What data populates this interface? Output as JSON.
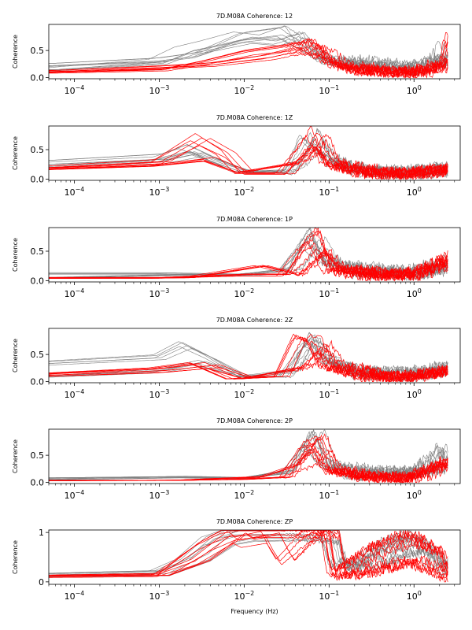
{
  "chart_data": [
    {
      "type": "line",
      "title": "7D.M08A Coherence: 12",
      "ylabel": "Coherence",
      "xlabel": "",
      "xscale": "log",
      "xlim": [
        5e-05,
        3.5
      ],
      "ylim": [
        -0.02,
        0.98
      ],
      "yticks": [
        0.0,
        0.5
      ],
      "ytick_labels": [
        "0.0",
        "0.5"
      ],
      "xticks": [
        0.0001,
        0.001,
        0.01,
        0.1,
        1
      ],
      "xtick_labels": [
        "10",
        "10",
        "10",
        "10",
        "10"
      ],
      "xtick_exponents": [
        "−4",
        "−3",
        "−2",
        "−1",
        "0"
      ],
      "series_colors": {
        "gray": "#808080",
        "red": "#ff0000"
      },
      "series": [
        {
          "color": "gray",
          "x": [
            5e-05,
            0.001,
            0.002,
            0.004,
            0.01,
            0.02,
            0.04,
            0.06,
            0.1,
            0.3,
            1,
            2,
            2.5
          ],
          "y": [
            0.15,
            0.3,
            0.5,
            0.6,
            0.75,
            0.7,
            0.85,
            0.5,
            0.3,
            0.2,
            0.15,
            0.3,
            0.5
          ]
        },
        {
          "color": "gray",
          "x": [
            5e-05,
            0.001,
            0.003,
            0.01,
            0.03,
            0.06,
            0.1,
            0.3,
            1,
            2.5
          ],
          "y": [
            0.25,
            0.35,
            0.45,
            0.8,
            0.9,
            0.6,
            0.35,
            0.3,
            0.2,
            0.4
          ]
        },
        {
          "color": "red",
          "x": [
            5e-05,
            0.001,
            0.003,
            0.01,
            0.03,
            0.06,
            0.1,
            0.2,
            1,
            2,
            2.5
          ],
          "y": [
            0.1,
            0.15,
            0.3,
            0.5,
            0.6,
            0.7,
            0.3,
            0.15,
            0.1,
            0.2,
            0.8
          ]
        },
        {
          "color": "red",
          "x": [
            5e-05,
            0.001,
            0.004,
            0.02,
            0.05,
            0.08,
            0.15,
            0.5,
            1,
            2.5
          ],
          "y": [
            0.12,
            0.2,
            0.25,
            0.4,
            0.55,
            0.45,
            0.2,
            0.12,
            0.1,
            0.3
          ]
        }
      ]
    },
    {
      "type": "line",
      "title": "7D.M08A Coherence: 1Z",
      "ylabel": "Coherence",
      "xlabel": "",
      "xscale": "log",
      "xlim": [
        5e-05,
        3.5
      ],
      "ylim": [
        -0.02,
        0.9
      ],
      "yticks": [
        0.0,
        0.5
      ],
      "ytick_labels": [
        "0.0",
        "0.5"
      ],
      "xticks": [
        0.0001,
        0.001,
        0.01,
        0.1,
        1
      ],
      "xtick_labels": [
        "10",
        "10",
        "10",
        "10",
        "10"
      ],
      "xtick_exponents": [
        "−4",
        "−3",
        "−2",
        "−1",
        "0"
      ],
      "series_colors": {
        "gray": "#808080",
        "red": "#ff0000"
      },
      "series": [
        {
          "color": "gray",
          "x": [
            5e-05,
            0.001,
            0.002,
            0.005,
            0.01,
            0.03,
            0.05,
            0.07,
            0.1,
            0.3,
            1,
            2.5
          ],
          "y": [
            0.3,
            0.4,
            0.55,
            0.3,
            0.15,
            0.1,
            0.4,
            0.8,
            0.3,
            0.15,
            0.15,
            0.2
          ]
        },
        {
          "color": "gray",
          "x": [
            5e-05,
            0.001,
            0.003,
            0.01,
            0.04,
            0.06,
            0.09,
            0.2,
            1,
            2.5
          ],
          "y": [
            0.2,
            0.3,
            0.45,
            0.12,
            0.15,
            0.7,
            0.5,
            0.15,
            0.1,
            0.15
          ]
        },
        {
          "color": "red",
          "x": [
            5e-05,
            0.001,
            0.003,
            0.006,
            0.01,
            0.03,
            0.05,
            0.07,
            0.1,
            0.3,
            1,
            2.5
          ],
          "y": [
            0.2,
            0.3,
            0.7,
            0.45,
            0.1,
            0.1,
            0.5,
            0.8,
            0.3,
            0.1,
            0.1,
            0.15
          ]
        },
        {
          "color": "red",
          "x": [
            5e-05,
            0.001,
            0.004,
            0.01,
            0.05,
            0.08,
            0.12,
            0.5,
            1,
            2.5
          ],
          "y": [
            0.18,
            0.25,
            0.35,
            0.12,
            0.3,
            0.6,
            0.25,
            0.1,
            0.1,
            0.2
          ]
        }
      ]
    },
    {
      "type": "line",
      "title": "7D.M08A Coherence: 1P",
      "ylabel": "Coherence",
      "xlabel": "",
      "xscale": "log",
      "xlim": [
        5e-05,
        3.5
      ],
      "ylim": [
        -0.02,
        0.9
      ],
      "yticks": [
        0.0,
        0.5
      ],
      "ytick_labels": [
        "0.0",
        "0.5"
      ],
      "xticks": [
        0.0001,
        0.001,
        0.01,
        0.1,
        1
      ],
      "xtick_labels": [
        "10",
        "10",
        "10",
        "10",
        "10"
      ],
      "xtick_exponents": [
        "−4",
        "−3",
        "−2",
        "−1",
        "0"
      ],
      "series_colors": {
        "gray": "#808080",
        "red": "#ff0000"
      },
      "series": [
        {
          "color": "gray",
          "x": [
            5e-05,
            0.001,
            0.01,
            0.03,
            0.05,
            0.07,
            0.1,
            0.3,
            1,
            2.5
          ],
          "y": [
            0.12,
            0.12,
            0.1,
            0.15,
            0.5,
            0.8,
            0.3,
            0.2,
            0.15,
            0.3
          ]
        },
        {
          "color": "gray",
          "x": [
            5e-05,
            0.002,
            0.01,
            0.04,
            0.06,
            0.09,
            0.2,
            1,
            2.5
          ],
          "y": [
            0.05,
            0.1,
            0.1,
            0.2,
            0.7,
            0.4,
            0.15,
            0.1,
            0.2
          ]
        },
        {
          "color": "red",
          "x": [
            5e-05,
            0.001,
            0.01,
            0.03,
            0.05,
            0.07,
            0.1,
            0.3,
            1,
            2.5
          ],
          "y": [
            0.05,
            0.05,
            0.1,
            0.1,
            0.6,
            0.8,
            0.2,
            0.1,
            0.12,
            0.4
          ]
        },
        {
          "color": "red",
          "x": [
            5e-05,
            0.002,
            0.015,
            0.04,
            0.08,
            0.12,
            0.5,
            1,
            2.5
          ],
          "y": [
            0.04,
            0.05,
            0.25,
            0.1,
            0.5,
            0.2,
            0.1,
            0.1,
            0.3
          ]
        }
      ]
    },
    {
      "type": "line",
      "title": "7D.M08A Coherence: 2Z",
      "ylabel": "Coherence",
      "xlabel": "",
      "xscale": "log",
      "xlim": [
        5e-05,
        3.5
      ],
      "ylim": [
        -0.02,
        0.98
      ],
      "yticks": [
        0.0,
        0.5
      ],
      "ytick_labels": [
        "0.0",
        "0.5"
      ],
      "xticks": [
        0.0001,
        0.001,
        0.01,
        0.1,
        1
      ],
      "xtick_labels": [
        "10",
        "10",
        "10",
        "10",
        "10"
      ],
      "xtick_exponents": [
        "−4",
        "−3",
        "−2",
        "−1",
        "0"
      ],
      "series_colors": {
        "gray": "#808080",
        "red": "#ff0000"
      },
      "series": [
        {
          "color": "gray",
          "x": [
            5e-05,
            0.001,
            0.002,
            0.004,
            0.01,
            0.03,
            0.05,
            0.07,
            0.1,
            0.3,
            1,
            2.5
          ],
          "y": [
            0.38,
            0.5,
            0.75,
            0.5,
            0.1,
            0.1,
            0.6,
            0.9,
            0.4,
            0.2,
            0.2,
            0.3
          ]
        },
        {
          "color": "gray",
          "x": [
            5e-05,
            0.001,
            0.003,
            0.01,
            0.04,
            0.06,
            0.09,
            0.2,
            1,
            2.5
          ],
          "y": [
            0.1,
            0.2,
            0.35,
            0.1,
            0.2,
            0.8,
            0.5,
            0.15,
            0.1,
            0.2
          ]
        },
        {
          "color": "red",
          "x": [
            5e-05,
            0.001,
            0.003,
            0.008,
            0.03,
            0.05,
            0.07,
            0.1,
            0.3,
            1,
            2.5
          ],
          "y": [
            0.15,
            0.25,
            0.35,
            0.05,
            0.1,
            0.85,
            0.8,
            0.3,
            0.1,
            0.1,
            0.2
          ]
        },
        {
          "color": "red",
          "x": [
            5e-05,
            0.001,
            0.004,
            0.01,
            0.05,
            0.08,
            0.12,
            0.5,
            1,
            2.5
          ],
          "y": [
            0.12,
            0.2,
            0.3,
            0.08,
            0.3,
            0.7,
            0.3,
            0.1,
            0.1,
            0.25
          ]
        }
      ]
    },
    {
      "type": "line",
      "title": "7D.M08A Coherence: 2P",
      "ylabel": "Coherence",
      "xlabel": "",
      "xscale": "log",
      "xlim": [
        5e-05,
        3.5
      ],
      "ylim": [
        -0.02,
        0.98
      ],
      "yticks": [
        0.0,
        0.5
      ],
      "ytick_labels": [
        "0.0",
        "0.5"
      ],
      "xticks": [
        0.0001,
        0.001,
        0.01,
        0.1,
        1
      ],
      "xtick_labels": [
        "10",
        "10",
        "10",
        "10",
        "10"
      ],
      "xtick_exponents": [
        "−4",
        "−3",
        "−2",
        "−1",
        "0"
      ],
      "series_colors": {
        "gray": "#808080",
        "red": "#ff0000"
      },
      "series": [
        {
          "color": "gray",
          "x": [
            5e-05,
            0.001,
            0.01,
            0.03,
            0.05,
            0.07,
            0.1,
            0.3,
            1,
            2,
            2.5
          ],
          "y": [
            0.08,
            0.1,
            0.08,
            0.2,
            0.6,
            0.9,
            0.3,
            0.2,
            0.2,
            0.6,
            0.4
          ]
        },
        {
          "color": "gray",
          "x": [
            5e-05,
            0.002,
            0.01,
            0.04,
            0.06,
            0.09,
            0.2,
            1,
            2.5
          ],
          "y": [
            0.05,
            0.1,
            0.08,
            0.2,
            0.8,
            0.4,
            0.15,
            0.15,
            0.3
          ]
        },
        {
          "color": "red",
          "x": [
            5e-05,
            0.001,
            0.01,
            0.03,
            0.05,
            0.07,
            0.1,
            0.3,
            1,
            2.5
          ],
          "y": [
            0.04,
            0.04,
            0.06,
            0.1,
            0.7,
            0.85,
            0.25,
            0.1,
            0.1,
            0.45
          ]
        },
        {
          "color": "red",
          "x": [
            5e-05,
            0.002,
            0.02,
            0.05,
            0.08,
            0.12,
            0.5,
            1,
            2.5
          ],
          "y": [
            0.03,
            0.04,
            0.1,
            0.3,
            0.6,
            0.2,
            0.08,
            0.08,
            0.3
          ]
        }
      ]
    },
    {
      "type": "line",
      "title": "7D.M08A Coherence: ZP",
      "ylabel": "Coherence",
      "xlabel": "Frequency (Hz)",
      "xscale": "log",
      "xlim": [
        5e-05,
        3.5
      ],
      "ylim": [
        -0.05,
        1.05
      ],
      "yticks": [
        0,
        1
      ],
      "ytick_labels": [
        "0",
        "1"
      ],
      "xticks": [
        0.0001,
        0.001,
        0.01,
        0.1,
        1
      ],
      "xtick_labels": [
        "10",
        "10",
        "10",
        "10",
        "10"
      ],
      "xtick_exponents": [
        "−4",
        "−3",
        "−2",
        "−1",
        "0"
      ],
      "series_colors": {
        "gray": "#808080",
        "red": "#ff0000"
      },
      "series": [
        {
          "color": "gray",
          "x": [
            5e-05,
            0.001,
            0.002,
            0.004,
            0.01,
            0.05,
            0.1,
            0.12,
            0.2,
            0.5,
            1,
            2,
            2.5
          ],
          "y": [
            0.15,
            0.2,
            0.4,
            0.8,
            1.0,
            1.0,
            1.0,
            0.4,
            0.3,
            0.7,
            0.85,
            0.5,
            0.3
          ]
        },
        {
          "color": "gray",
          "x": [
            5e-05,
            0.001,
            0.003,
            0.006,
            0.01,
            0.05,
            0.1,
            0.13,
            0.3,
            1,
            2.5
          ],
          "y": [
            0.12,
            0.15,
            0.5,
            0.9,
            0.98,
            1.0,
            0.95,
            0.3,
            0.4,
            0.75,
            0.2
          ]
        },
        {
          "color": "red",
          "x": [
            5e-05,
            0.001,
            0.003,
            0.006,
            0.01,
            0.1,
            0.12,
            0.3,
            0.7,
            1,
            2,
            2.5
          ],
          "y": [
            0.12,
            0.15,
            0.7,
            0.95,
            1.0,
            1.0,
            0.2,
            0.6,
            0.85,
            0.85,
            0.6,
            0.3
          ]
        },
        {
          "color": "red",
          "x": [
            5e-05,
            0.001,
            0.003,
            0.008,
            0.01,
            0.02,
            0.025,
            0.03,
            0.06,
            0.1,
            0.12,
            0.3,
            1,
            2.5
          ],
          "y": [
            0.1,
            0.12,
            0.4,
            0.9,
            0.8,
            0.9,
            0.6,
            0.4,
            0.9,
            0.95,
            0.1,
            0.2,
            0.4,
            0.1
          ]
        }
      ]
    }
  ]
}
